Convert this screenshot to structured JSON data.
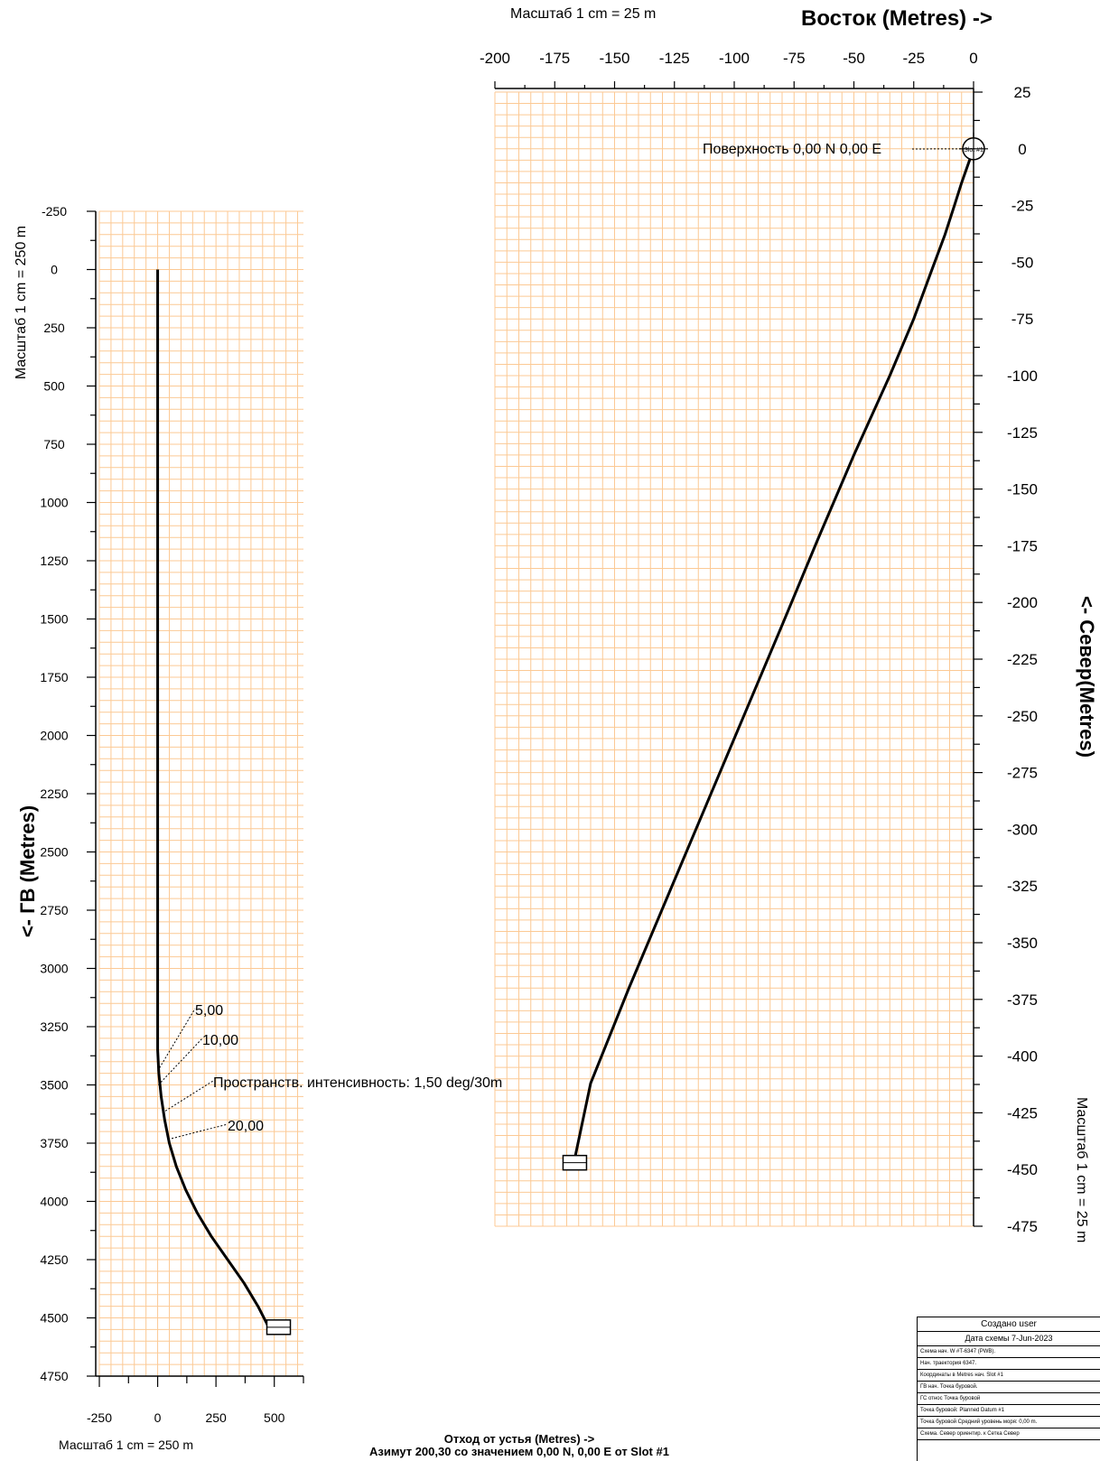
{
  "chart_data": [
    {
      "type": "line",
      "title": "Восток (Metres) ->",
      "scale_note": "Масштаб 1 cm = 25 m",
      "xlabel": "Восток (Metres) ->",
      "ylabel": "<- Север(Metres)",
      "right_scale_note": "Масштаб 1 cm = 25 m",
      "xlim": [
        -200,
        0
      ],
      "ylim": [
        -475,
        25
      ],
      "x_ticks": [
        -200,
        -175,
        -150,
        -125,
        -100,
        -75,
        -50,
        -25,
        0
      ],
      "y_ticks": [
        25,
        0,
        -25,
        -50,
        -75,
        -100,
        -125,
        -150,
        -175,
        -200,
        -225,
        -250,
        -275,
        -300,
        -325,
        -350,
        -375,
        -400,
        -425,
        -450,
        -475
      ],
      "grid": true,
      "series": [
        {
          "x": [
            0,
            -2,
            -5,
            -8,
            -12,
            -18,
            -25,
            -35,
            -50,
            -65,
            -80,
            -96,
            -112,
            -128,
            -144,
            -160,
            -167
          ],
          "y": [
            0,
            -6,
            -15,
            -25,
            -38,
            -55,
            -75,
            -100,
            -135,
            -172,
            -210,
            -250,
            -290,
            -330,
            -370,
            -412,
            -447
          ]
        }
      ],
      "annotations": [
        {
          "text": "Поверхность 0,00 N 0,00 E",
          "x": 0,
          "y": 0
        }
      ],
      "markers": [
        {
          "label": "Slot #1",
          "x": 0,
          "y": 0
        }
      ]
    },
    {
      "type": "line",
      "xlabel": "Отход от устья (Metres) ->",
      "xlabel2": "Азимут 200,30 со значением 0,00 N, 0,00 E от Slot #1",
      "ylabel": "<- ГВ (Metres)",
      "scale_note_vertical": "Масштаб 1 cm = 250 m",
      "scale_note_bottom": "Масштаб 1 cm = 250 m",
      "xlim": [
        -250,
        500
      ],
      "ylim": [
        -250,
        4750
      ],
      "x_ticks": [
        -250,
        0,
        250,
        500
      ],
      "y_ticks": [
        -250,
        0,
        250,
        500,
        750,
        1000,
        1250,
        1500,
        1750,
        2000,
        2250,
        2500,
        2750,
        3000,
        3250,
        3500,
        3750,
        4000,
        4250,
        4500,
        4750
      ],
      "grid": true,
      "series": [
        {
          "x": [
            0,
            0,
            0,
            5,
            15,
            30,
            50,
            80,
            120,
            170,
            230,
            300,
            370,
            430,
            476
          ],
          "y": [
            0,
            1000,
            3350,
            3450,
            3550,
            3650,
            3750,
            3850,
            3950,
            4050,
            4150,
            4250,
            4350,
            4450,
            4540
          ]
        }
      ],
      "annotations": [
        {
          "text": "5,00",
          "x": 0,
          "y": 3440
        },
        {
          "text": "10,00",
          "x": 3,
          "y": 3500
        },
        {
          "text": "Пространств. интенсивность: 1,50 deg/30m",
          "x": 20,
          "y": 3620
        },
        {
          "text": "20,00",
          "x": 60,
          "y": 3730
        }
      ]
    }
  ],
  "info_box": {
    "header1": "Создано  user",
    "header2": "Дата схемы    7-Jun-2023",
    "rows": [
      "Схема нач. W #T-6347 (PWB).",
      "Нач. траектория 6347.",
      "Координаты в Metres нач. Slot #1",
      "ГВ нач. Точка буровой.",
      "ГС относ Точка буровой",
      "Точка буровой: Planned Datum #1",
      "Точка буровой Средний уровень моря: 0,00 m.",
      "Схема. Север ориентир. к Сетка Север"
    ]
  },
  "colors": {
    "grid": "#fcc994",
    "trajectory": "#000000",
    "axis": "#000000"
  }
}
